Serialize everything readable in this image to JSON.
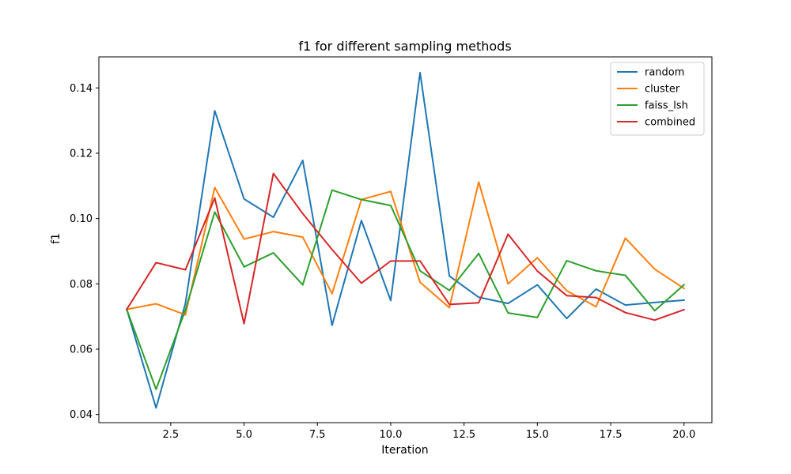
{
  "chart_data": {
    "type": "line",
    "title": "f1 for different sampling methods",
    "xlabel": "Iteration",
    "ylabel": "f1",
    "xlim": [
      0.05,
      20.95
    ],
    "ylim": [
      0.0375,
      0.1495
    ],
    "x_ticks": [
      2.5,
      5.0,
      7.5,
      10.0,
      12.5,
      15.0,
      17.5,
      20.0
    ],
    "x_tick_labels": [
      "2.5",
      "5.0",
      "7.5",
      "10.0",
      "12.5",
      "15.0",
      "17.5",
      "20.0"
    ],
    "y_ticks": [
      0.04,
      0.06,
      0.08,
      0.1,
      0.12,
      0.14
    ],
    "y_tick_labels": [
      "0.04",
      "0.06",
      "0.08",
      "0.10",
      "0.12",
      "0.14"
    ],
    "grid": false,
    "legend_position": "top-right",
    "x": [
      1,
      2,
      3,
      4,
      5,
      6,
      7,
      8,
      9,
      10,
      11,
      12,
      13,
      14,
      15,
      16,
      17,
      18,
      19,
      20
    ],
    "series": [
      {
        "name": "random",
        "color": "#1f77b4",
        "values": [
          0.0722,
          0.042,
          0.074,
          0.133,
          0.106,
          0.1004,
          0.1178,
          0.0673,
          0.0994,
          0.0749,
          0.1447,
          0.0824,
          0.0759,
          0.074,
          0.0797,
          0.0694,
          0.0784,
          0.0735,
          0.0743,
          0.075
        ]
      },
      {
        "name": "cluster",
        "color": "#ff7f0e",
        "values": [
          0.0722,
          0.0739,
          0.0705,
          0.1095,
          0.0937,
          0.096,
          0.0943,
          0.077,
          0.1058,
          0.1083,
          0.0805,
          0.0727,
          0.1112,
          0.08,
          0.088,
          0.0779,
          0.073,
          0.094,
          0.0845,
          0.0786
        ]
      },
      {
        "name": "faiss_lsh",
        "color": "#2ca02c",
        "values": [
          0.0722,
          0.0477,
          0.072,
          0.102,
          0.0852,
          0.0895,
          0.0797,
          0.1087,
          0.1058,
          0.104,
          0.084,
          0.078,
          0.0893,
          0.0711,
          0.0697,
          0.0871,
          0.084,
          0.0826,
          0.0718,
          0.0797
        ]
      },
      {
        "name": "combined",
        "color": "#d62728",
        "values": [
          0.0722,
          0.0865,
          0.0843,
          0.1063,
          0.0678,
          0.1138,
          0.1015,
          0.0905,
          0.0802,
          0.087,
          0.087,
          0.0737,
          0.0742,
          0.0952,
          0.0839,
          0.0764,
          0.0758,
          0.0712,
          0.0689,
          0.0721
        ]
      }
    ]
  }
}
